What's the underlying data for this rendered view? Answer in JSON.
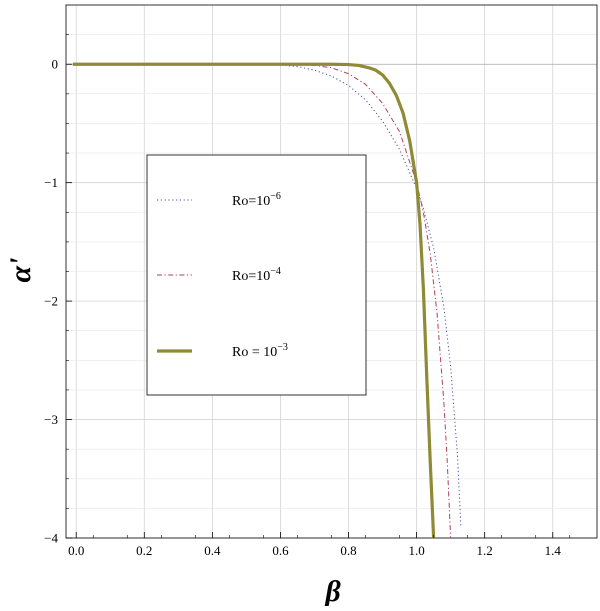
{
  "chart_data": {
    "type": "line",
    "xlabel": "β",
    "ylabel": "α'",
    "xlim": [
      -0.03,
      1.53
    ],
    "ylim": [
      -4.0,
      0.5
    ],
    "xticks": [
      "0.0",
      "0.2",
      "0.4",
      "0.6",
      "0.8",
      "1.0",
      "1.2",
      "1.4"
    ],
    "yticks": [
      "0",
      "−1",
      "−2",
      "−3",
      "−4"
    ],
    "grid": true,
    "legend_position": "center-left",
    "series": [
      {
        "name": "Ro=10−6",
        "style": "dotted",
        "color": "#4a4fa8",
        "x": [
          0.0,
          0.2,
          0.4,
          0.5,
          0.55,
          0.6,
          0.65,
          0.7,
          0.75,
          0.8,
          0.85,
          0.9,
          0.95,
          1.0,
          1.02,
          1.05,
          1.08,
          1.1,
          1.12,
          1.13
        ],
        "y": [
          0.0,
          0.0,
          0.0,
          0.0,
          0.0,
          -0.005,
          -0.02,
          -0.05,
          -0.1,
          -0.18,
          -0.3,
          -0.48,
          -0.72,
          -1.05,
          -1.22,
          -1.55,
          -2.05,
          -2.55,
          -3.3,
          -3.9
        ]
      },
      {
        "name": "Ro=10−4",
        "style": "dashdot",
        "color": "#b0405a",
        "x": [
          0.0,
          0.2,
          0.4,
          0.6,
          0.65,
          0.7,
          0.75,
          0.8,
          0.85,
          0.9,
          0.95,
          1.0,
          1.02,
          1.04,
          1.06,
          1.08,
          1.09,
          1.1
        ],
        "y": [
          0.0,
          0.0,
          0.0,
          0.0,
          -0.005,
          -0.01,
          -0.03,
          -0.08,
          -0.17,
          -0.33,
          -0.57,
          -1.0,
          -1.25,
          -1.6,
          -2.1,
          -2.85,
          -3.35,
          -4.0
        ]
      },
      {
        "name": "Ro = 10−3",
        "style": "solid",
        "color": "#8f8a35",
        "x": [
          -0.01,
          0.2,
          0.4,
          0.6,
          0.75,
          0.8,
          0.83,
          0.86,
          0.88,
          0.9,
          0.92,
          0.94,
          0.96,
          0.98,
          1.0,
          1.01,
          1.02,
          1.03,
          1.04,
          1.05
        ],
        "y": [
          0.0,
          0.0,
          0.0,
          0.0,
          0.0,
          -0.003,
          -0.01,
          -0.03,
          -0.05,
          -0.09,
          -0.16,
          -0.26,
          -0.41,
          -0.65,
          -1.0,
          -1.35,
          -1.9,
          -2.65,
          -3.35,
          -4.0
        ]
      }
    ]
  }
}
